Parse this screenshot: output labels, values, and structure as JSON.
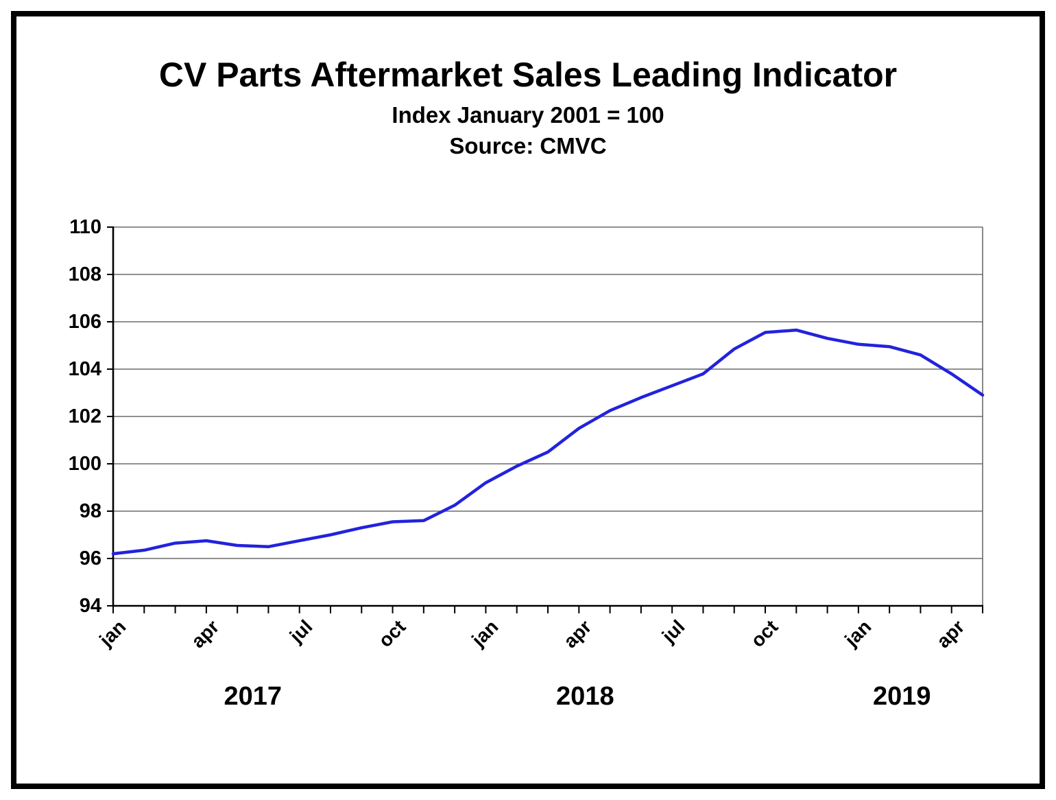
{
  "chart_data": {
    "type": "line",
    "title": "CV Parts Aftermarket Sales Leading Indicator",
    "subtitle": "Index January 2001 = 100",
    "source": "Source: CMVC",
    "x": [
      "Jan 2017",
      "Feb 2017",
      "Mar 2017",
      "Apr 2017",
      "May 2017",
      "Jun 2017",
      "Jul 2017",
      "Aug 2017",
      "Sep 2017",
      "Oct 2017",
      "Nov 2017",
      "Dec 2017",
      "Jan 2018",
      "Feb 2018",
      "Mar 2018",
      "Apr 2018",
      "May 2018",
      "Jun 2018",
      "Jul 2018",
      "Aug 2018",
      "Sep 2018",
      "Oct 2018",
      "Nov 2018",
      "Dec 2018",
      "Jan 2019",
      "Feb 2019",
      "Mar 2019",
      "Apr 2019",
      "May 2019"
    ],
    "values": [
      96.2,
      96.35,
      96.65,
      96.75,
      96.55,
      96.5,
      96.75,
      97.0,
      97.3,
      97.55,
      97.6,
      98.25,
      99.2,
      99.9,
      100.5,
      101.5,
      102.25,
      102.8,
      103.3,
      103.8,
      104.85,
      105.55,
      105.65,
      105.3,
      105.05,
      104.95,
      104.6,
      103.8,
      102.9
    ],
    "ylim": [
      94,
      110
    ],
    "y_ticks": [
      94,
      96,
      98,
      100,
      102,
      104,
      106,
      108,
      110
    ],
    "x_tick_labels": [
      {
        "index": 0,
        "label": "jan"
      },
      {
        "index": 3,
        "label": "apr"
      },
      {
        "index": 6,
        "label": "jul"
      },
      {
        "index": 9,
        "label": "oct"
      },
      {
        "index": 12,
        "label": "jan"
      },
      {
        "index": 15,
        "label": "apr"
      },
      {
        "index": 18,
        "label": "jul"
      },
      {
        "index": 21,
        "label": "oct"
      },
      {
        "index": 24,
        "label": "jan"
      },
      {
        "index": 27,
        "label": "apr"
      }
    ],
    "year_labels": [
      {
        "label": "2017",
        "center_index": 4.5
      },
      {
        "label": "2018",
        "center_index": 15.2
      },
      {
        "label": "2019",
        "center_index": 25.4
      }
    ],
    "line_color": "#2222dd",
    "grid_color": "#6b6b6b",
    "axis_color": "#000000",
    "grid": true,
    "legend": "none"
  }
}
